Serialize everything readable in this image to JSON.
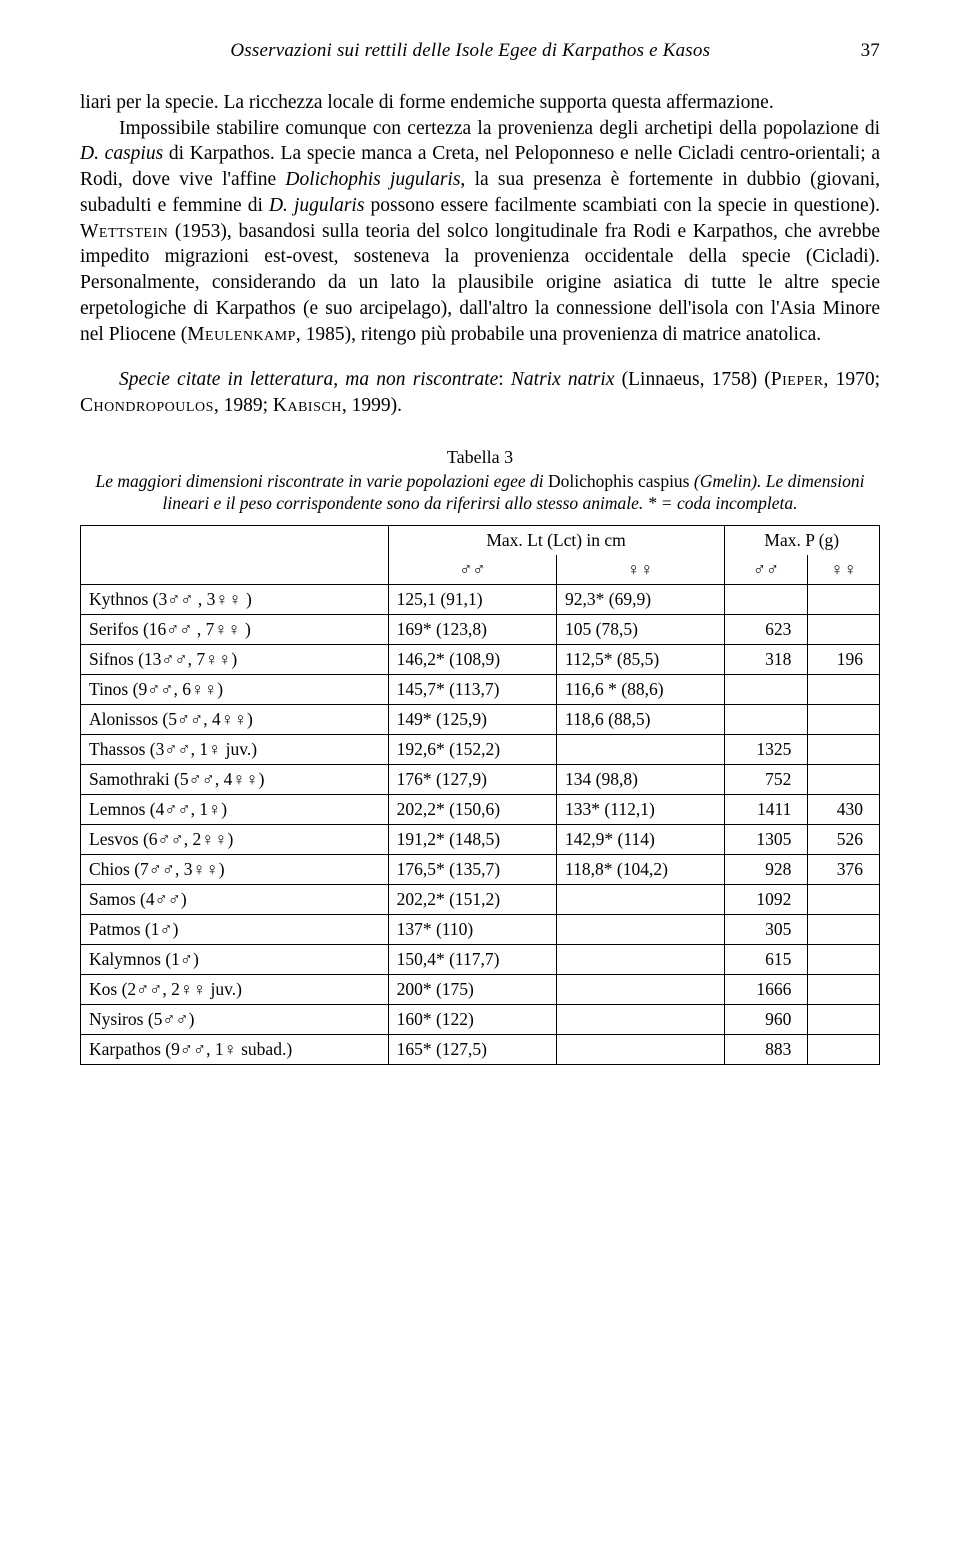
{
  "running_head": {
    "title": "Osservazioni sui rettili delle Isole Egee di Karpathos e Kasos",
    "page_number": "37"
  },
  "paragraphs": {
    "p1_a": "liari per la specie. La ricchezza locale di forme endemiche supporta questa affermazione.",
    "p1_b": "Impossibile stabilire comunque con certezza la provenienza degli archetipi della popolazione di ",
    "p1_c": "D. caspius",
    "p1_d": " di Karpathos. La specie manca a Creta, nel Peloponneso e nelle Cicladi centro-orientali; a Rodi, dove vive l'affine ",
    "p1_e": "Dolichophis jugularis",
    "p1_f": ", la sua presenza è fortemente in dubbio (giovani, subadulti e femmine di ",
    "p1_g": "D. jugularis",
    "p1_h": " possono essere facilmente scambiati con la specie in questione). ",
    "p1_i": "Wettstein",
    "p1_j": " (1953), basandosi sulla teoria del solco longitudinale fra Rodi e Karpathos, che avrebbe impedito migrazioni est-ovest, sosteneva la provenienza occidentale della specie (Cicladi). Personalmente, considerando da un lato la plausibile origine asiatica di tutte le altre specie erpetologiche di Karpathos (e suo arcipelago), dall'altro la connessione dell'isola con l'Asia Minore nel Pliocene (",
    "p1_k": "Meulenkamp",
    "p1_l": ", 1985), ritengo più probabile una provenienza di matrice anatolica.",
    "p2_a": "Specie citate in letteratura, ma non riscontrate",
    "p2_b": ": ",
    "p2_c": "Natrix natrix",
    "p2_d": " (Linnaeus, 1758) (",
    "p2_e": "Pieper",
    "p2_f": ", 1970; ",
    "p2_g": "Chondropoulos",
    "p2_h": ", 1989; ",
    "p2_i": "Kabisch",
    "p2_j": ", 1999)."
  },
  "table": {
    "title": "Tabella 3",
    "caption_a": "Le maggiori dimensioni riscontrate in varie popolazioni egee di ",
    "caption_b": "Dolichophis caspius",
    "caption_c": " (Gmelin). Le dimensioni lineari e il peso corrispondente sono da riferirsi allo stesso animale. * = coda incompleta.",
    "header": {
      "lt": "Max. Lt (Lct) in cm",
      "p": "Max. P (g)",
      "mm": "♂♂",
      "ff": "♀♀"
    },
    "rows": [
      {
        "loc": "Kythnos (3♂♂ , 3♀♀ )",
        "lt_m": "125,1 (91,1)",
        "lt_f": "92,3* (69,9)",
        "p_m": "",
        "p_f": ""
      },
      {
        "loc": "Serifos (16♂♂ , 7♀♀ )",
        "lt_m": "169* (123,8)",
        "lt_f": "105 (78,5)",
        "p_m": "623",
        "p_f": ""
      },
      {
        "loc": "Sifnos (13♂♂, 7♀♀)",
        "lt_m": "146,2* (108,9)",
        "lt_f": "112,5* (85,5)",
        "p_m": "318",
        "p_f": "196"
      },
      {
        "loc": "Tinos (9♂♂, 6♀♀)",
        "lt_m": "145,7* (113,7)",
        "lt_f": "116,6 * (88,6)",
        "p_m": "",
        "p_f": ""
      },
      {
        "loc": "Alonissos (5♂♂, 4♀♀)",
        "lt_m": "149* (125,9)",
        "lt_f": "118,6 (88,5)",
        "p_m": "",
        "p_f": ""
      },
      {
        "loc": "Thassos (3♂♂, 1♀ juv.)",
        "lt_m": "192,6* (152,2)",
        "lt_f": "",
        "p_m": "1325",
        "p_f": ""
      },
      {
        "loc": "Samothraki (5♂♂, 4♀♀)",
        "lt_m": "176* (127,9)",
        "lt_f": "134 (98,8)",
        "p_m": "752",
        "p_f": ""
      },
      {
        "loc": "Lemnos (4♂♂, 1♀)",
        "lt_m": "202,2* (150,6)",
        "lt_f": "133* (112,1)",
        "p_m": "1411",
        "p_f": "430"
      },
      {
        "loc": "Lesvos (6♂♂, 2♀♀)",
        "lt_m": "191,2* (148,5)",
        "lt_f": "142,9* (114)",
        "p_m": "1305",
        "p_f": "526"
      },
      {
        "loc": "Chios (7♂♂, 3♀♀)",
        "lt_m": "176,5* (135,7)",
        "lt_f": "118,8* (104,2)",
        "p_m": "928",
        "p_f": "376"
      },
      {
        "loc": "Samos (4♂♂)",
        "lt_m": "202,2* (151,2)",
        "lt_f": "",
        "p_m": "1092",
        "p_f": ""
      },
      {
        "loc": "Patmos (1♂)",
        "lt_m": "137* (110)",
        "lt_f": "",
        "p_m": "305",
        "p_f": ""
      },
      {
        "loc": "Kalymnos (1♂)",
        "lt_m": "150,4* (117,7)",
        "lt_f": "",
        "p_m": "615",
        "p_f": ""
      },
      {
        "loc": "Kos (2♂♂, 2♀♀ juv.)",
        "lt_m": "200* (175)",
        "lt_f": "",
        "p_m": "1666",
        "p_f": ""
      },
      {
        "loc": "Nysiros (5♂♂)",
        "lt_m": "160* (122)",
        "lt_f": "",
        "p_m": "960",
        "p_f": ""
      },
      {
        "loc": "Karpathos (9♂♂, 1♀ subad.)",
        "lt_m": "165* (127,5)",
        "lt_f": "",
        "p_m": "883",
        "p_f": ""
      }
    ]
  }
}
